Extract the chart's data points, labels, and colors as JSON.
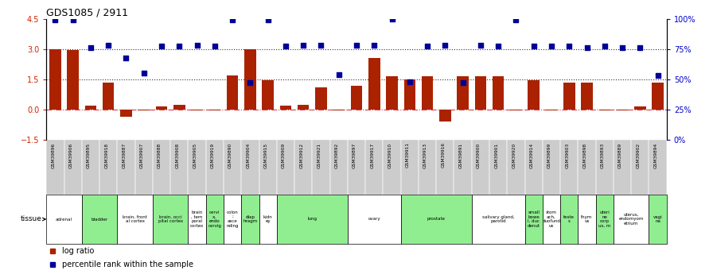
{
  "title": "GDS1085 / 2911",
  "samples": [
    "GSM39896",
    "GSM39906",
    "GSM39895",
    "GSM39918",
    "GSM39887",
    "GSM39907",
    "GSM39888",
    "GSM39908",
    "GSM39905",
    "GSM39919",
    "GSM39890",
    "GSM39904",
    "GSM39915",
    "GSM39909",
    "GSM39912",
    "GSM39921",
    "GSM39892",
    "GSM39897",
    "GSM39917",
    "GSM39910",
    "GSM39911",
    "GSM39913",
    "GSM39916",
    "GSM39891",
    "GSM39900",
    "GSM39901",
    "GSM39920",
    "GSM39914",
    "GSM39899",
    "GSM39903",
    "GSM39898",
    "GSM39893",
    "GSM39889",
    "GSM39902",
    "GSM39894"
  ],
  "log_ratio": [
    3.0,
    2.95,
    0.2,
    1.35,
    -0.35,
    -0.05,
    0.15,
    0.25,
    -0.02,
    -0.02,
    1.7,
    3.0,
    1.45,
    0.2,
    0.25,
    1.1,
    -0.03,
    1.2,
    2.55,
    1.65,
    1.5,
    1.65,
    -0.6,
    1.65,
    1.65,
    1.65,
    -0.05,
    1.45,
    -0.05,
    1.35,
    1.35,
    -0.05,
    -0.05,
    0.15,
    1.35
  ],
  "percentile_rank_left": [
    4.45,
    4.45,
    3.1,
    3.2,
    2.55,
    1.8,
    3.15,
    3.15,
    3.2,
    3.15,
    4.45,
    1.35,
    4.45,
    3.15,
    3.2,
    3.2,
    1.75,
    3.2,
    3.2,
    4.5,
    1.4,
    3.15,
    3.2,
    1.35,
    3.2,
    3.15,
    4.45,
    3.15,
    3.15,
    3.15,
    3.1,
    3.15,
    3.1,
    3.1,
    1.7
  ],
  "tissue_groups": [
    {
      "label": "adrenal",
      "start": 0,
      "end": 1,
      "color": "#ffffff"
    },
    {
      "label": "bladder",
      "start": 2,
      "end": 3,
      "color": "#90EE90"
    },
    {
      "label": "brain, front\nal cortex",
      "start": 4,
      "end": 5,
      "color": "#ffffff"
    },
    {
      "label": "brain, occi\npital cortex",
      "start": 6,
      "end": 7,
      "color": "#90EE90"
    },
    {
      "label": "brain\n, tem\nporal\ncortex",
      "start": 8,
      "end": 8,
      "color": "#ffffff"
    },
    {
      "label": "cervi\nx,\nendo\ncervig",
      "start": 9,
      "end": 9,
      "color": "#90EE90"
    },
    {
      "label": "colon\n;\nasce\nnding",
      "start": 10,
      "end": 10,
      "color": "#ffffff"
    },
    {
      "label": "diap\nhragm",
      "start": 11,
      "end": 11,
      "color": "#90EE90"
    },
    {
      "label": "kidn\ney",
      "start": 12,
      "end": 12,
      "color": "#ffffff"
    },
    {
      "label": "lung",
      "start": 13,
      "end": 16,
      "color": "#90EE90"
    },
    {
      "label": "ovary",
      "start": 17,
      "end": 19,
      "color": "#ffffff"
    },
    {
      "label": "prostate",
      "start": 20,
      "end": 23,
      "color": "#90EE90"
    },
    {
      "label": "salivary gland,\nparotid",
      "start": 24,
      "end": 26,
      "color": "#ffffff"
    },
    {
      "label": "small\nbowe\nl, duc\ndenut",
      "start": 27,
      "end": 27,
      "color": "#90EE90"
    },
    {
      "label": "stom\nach,\nduofund\nus",
      "start": 28,
      "end": 28,
      "color": "#ffffff"
    },
    {
      "label": "teste\ns",
      "start": 29,
      "end": 29,
      "color": "#90EE90"
    },
    {
      "label": "thym\nus",
      "start": 30,
      "end": 30,
      "color": "#ffffff"
    },
    {
      "label": "uteri\nne\ncorp\nus, m",
      "start": 31,
      "end": 31,
      "color": "#90EE90"
    },
    {
      "label": "uterus,\nendomyom\netrium",
      "start": 32,
      "end": 33,
      "color": "#ffffff"
    },
    {
      "label": "vagi\nna",
      "start": 34,
      "end": 34,
      "color": "#90EE90"
    }
  ],
  "bar_color": "#AA2200",
  "dot_color": "#000099",
  "ylim_left": [
    -1.5,
    4.5
  ],
  "ylim_right": [
    0,
    100
  ],
  "yticks_left": [
    -1.5,
    0.0,
    1.5,
    3.0,
    4.5
  ],
  "yticks_right": [
    0,
    25,
    50,
    75,
    100
  ],
  "hlines_y": [
    0.0,
    1.5,
    3.0
  ],
  "hline_styles": [
    "dashdot",
    "dotted",
    "dotted"
  ],
  "hline_colors": [
    "#CC4444",
    "#333333",
    "#333333"
  ],
  "bg_color": "#ffffff",
  "gsm_bg_color": "#cccccc"
}
